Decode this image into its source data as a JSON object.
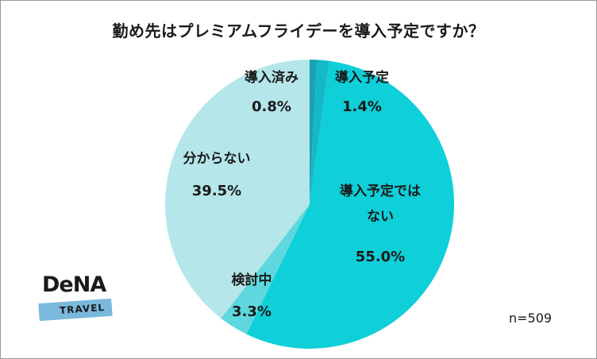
{
  "chart_data": {
    "type": "pie",
    "title": "勤め先はプレミアムフライデーを導入予定ですか？",
    "slices": [
      {
        "label": "導入済み",
        "value": 0.8,
        "value_label": "0.8%",
        "color": "#1aa3b3"
      },
      {
        "label": "導入予定",
        "value": 1.4,
        "value_label": "1.4%",
        "color": "#14b8c6"
      },
      {
        "label": "導入予定ではない",
        "label_lines": [
          "導入予定では",
          "ない"
        ],
        "value": 55.0,
        "value_label": "55.0%",
        "color": "#0fcfd8"
      },
      {
        "label": "検討中",
        "value": 3.3,
        "value_label": "3.3%",
        "color": "#5ed8de"
      },
      {
        "label": "分からない",
        "value": 39.5,
        "value_label": "39.5%",
        "color": "#b4e6ea"
      }
    ],
    "start_angle_deg": 0,
    "direction": "clockwise"
  },
  "sample_size": "n=509",
  "logo": {
    "brand": "DeNA",
    "sub": "TRAVEL"
  }
}
